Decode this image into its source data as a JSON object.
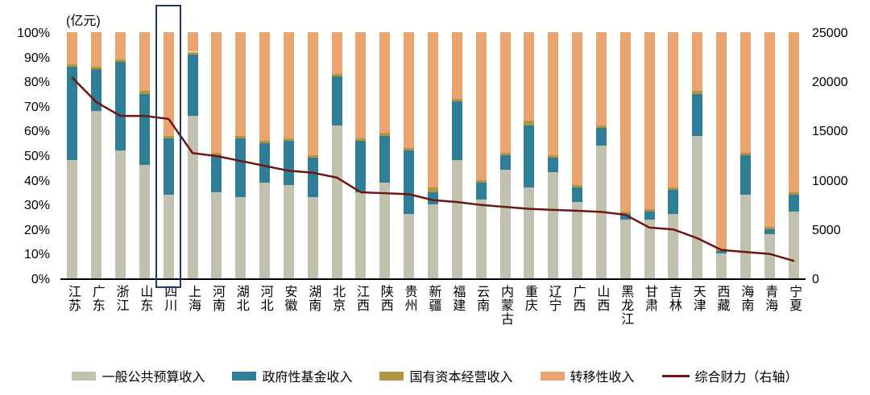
{
  "chart_data": {
    "type": "bar",
    "subtype": "stacked-100-percent-with-line",
    "unit_label": "(亿元)",
    "categories": [
      "江苏",
      "广东",
      "浙江",
      "山东",
      "四川",
      "上海",
      "河南",
      "湖北",
      "河北",
      "安徽",
      "湖南",
      "北京",
      "江西",
      "陕西",
      "贵州",
      "新疆",
      "福建",
      "云南",
      "内蒙古",
      "重庆",
      "辽宁",
      "广西",
      "山西",
      "黑龙江",
      "甘肃",
      "吉林",
      "天津",
      "西藏",
      "海南",
      "青海",
      "宁夏"
    ],
    "series": [
      {
        "name": "一般公共预算收入",
        "color": "#c2c1b0",
        "values": [
          48,
          68,
          52,
          46,
          34,
          66,
          35,
          33,
          39,
          38,
          33,
          62,
          35,
          39,
          26,
          30,
          48,
          32,
          44,
          37,
          43,
          31,
          54,
          24,
          24,
          26,
          58,
          10,
          34,
          18,
          27
        ]
      },
      {
        "name": "政府性基金收入",
        "color": "#2e7e97",
        "values": [
          38,
          17,
          36,
          29,
          23,
          25,
          15,
          24,
          16,
          18,
          16,
          20,
          21,
          19,
          26,
          5,
          24,
          7,
          6,
          25,
          6,
          6,
          7,
          2,
          3,
          10,
          17,
          1,
          16,
          2,
          7
        ]
      },
      {
        "name": "国有资本经营收入",
        "color": "#b2953f",
        "values": [
          1,
          1,
          1,
          1,
          1,
          1,
          1,
          1,
          1,
          1,
          1,
          1,
          1,
          1,
          1,
          2,
          1,
          1,
          1,
          2,
          1,
          1,
          1,
          1,
          1,
          1,
          1,
          1,
          1,
          1,
          1
        ]
      },
      {
        "name": "转移性收入",
        "color": "#e9a470",
        "values": [
          13,
          14,
          11,
          24,
          42,
          8,
          49,
          42,
          44,
          43,
          50,
          17,
          43,
          41,
          47,
          63,
          27,
          60,
          49,
          36,
          50,
          62,
          38,
          73,
          72,
          63,
          24,
          88,
          49,
          79,
          65
        ]
      }
    ],
    "line_series": {
      "name": "综合财力（右轴）",
      "color": "#6e1411",
      "axis": "right",
      "values": [
        20500,
        18000,
        16600,
        16600,
        16300,
        12800,
        12500,
        12000,
        11500,
        11000,
        10800,
        10300,
        8800,
        8700,
        8600,
        8000,
        7800,
        7500,
        7300,
        7100,
        7000,
        6900,
        6800,
        6500,
        5200,
        5000,
        4100,
        2900,
        2700,
        2500,
        1800
      ]
    },
    "left_axis": {
      "min": 0,
      "max": 100,
      "ticks": [
        "100%",
        "90%",
        "80%",
        "70%",
        "60%",
        "50%",
        "40%",
        "30%",
        "20%",
        "10%",
        "0%"
      ]
    },
    "right_axis": {
      "min": 0,
      "max": 25000,
      "ticks": [
        "25000",
        "20000",
        "15000",
        "10000",
        "5000",
        "0"
      ]
    },
    "highlight": {
      "category": "四川",
      "border_color": "#1f3a66"
    },
    "grid": "off",
    "legend_position": "bottom"
  }
}
